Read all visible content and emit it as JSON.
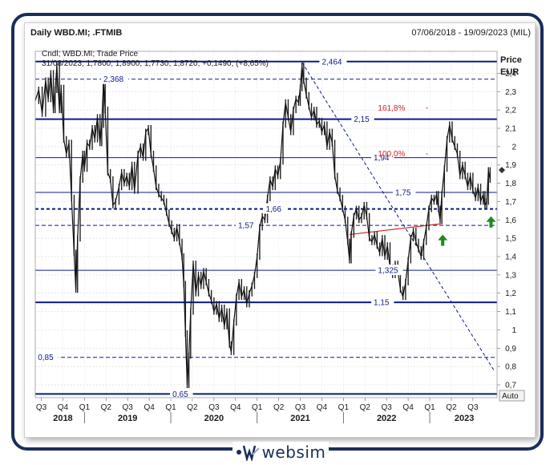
{
  "header": {
    "title": "Daily WBD.MI; .FTMIB",
    "date_range": "07/06/2018 - 19/09/2023 (MIL)"
  },
  "legend": {
    "series_line": "Cndl; WBD.MI; Trade Price",
    "ohlc_line": "31/08/2023; 1,7800; 1,8900; 1,7730; 1,8720; +0,1490; (+8,65%)"
  },
  "yaxis": {
    "title": "Price",
    "unit": "EUR",
    "auto_label": "Auto"
  },
  "brand": {
    "name": "websim"
  },
  "chart_data": {
    "type": "candlestick",
    "ylim": [
      0.63,
      2.52
    ],
    "yticks": [
      {
        "v": 2.4,
        "t": "2,4"
      },
      {
        "v": 2.3,
        "t": "2,3"
      },
      {
        "v": 2.2,
        "t": "2,2"
      },
      {
        "v": 2.1,
        "t": "2,1"
      },
      {
        "v": 2.0,
        "t": "2"
      },
      {
        "v": 1.9,
        "t": "1,9"
      },
      {
        "v": 1.8,
        "t": "1,8"
      },
      {
        "v": 1.7,
        "t": "1,7"
      },
      {
        "v": 1.6,
        "t": "1,6"
      },
      {
        "v": 1.5,
        "t": "1,5"
      },
      {
        "v": 1.4,
        "t": "1,4"
      },
      {
        "v": 1.3,
        "t": "1,3"
      },
      {
        "v": 1.2,
        "t": "1,2"
      },
      {
        "v": 1.1,
        "t": "1,1"
      },
      {
        "v": 1.0,
        "t": "1"
      },
      {
        "v": 0.9,
        "t": "0,9"
      },
      {
        "v": 0.8,
        "t": "0,8"
      },
      {
        "v": 0.7,
        "t": "0,7"
      }
    ],
    "xticks": [
      {
        "t": "Q3",
        "x": 2018.5
      },
      {
        "t": "Q4",
        "x": 2018.75
      },
      {
        "t": "Q1",
        "x": 2019.0
      },
      {
        "t": "Q2",
        "x": 2019.25
      },
      {
        "t": "Q3",
        "x": 2019.5
      },
      {
        "t": "Q4",
        "x": 2019.75
      },
      {
        "t": "Q1",
        "x": 2020.0
      },
      {
        "t": "Q2",
        "x": 2020.25
      },
      {
        "t": "Q3",
        "x": 2020.5
      },
      {
        "t": "Q4",
        "x": 2020.75
      },
      {
        "t": "Q1",
        "x": 2021.0
      },
      {
        "t": "Q2",
        "x": 2021.25
      },
      {
        "t": "Q3",
        "x": 2021.5
      },
      {
        "t": "Q4",
        "x": 2021.75
      },
      {
        "t": "Q1",
        "x": 2022.0
      },
      {
        "t": "Q2",
        "x": 2022.25
      },
      {
        "t": "Q3",
        "x": 2022.5
      },
      {
        "t": "Q4",
        "x": 2022.75
      },
      {
        "t": "Q1",
        "x": 2023.0
      },
      {
        "t": "Q2",
        "x": 2023.25
      },
      {
        "t": "Q3",
        "x": 2023.5
      }
    ],
    "year_labels": [
      {
        "t": "2018",
        "x": 2018.75
      },
      {
        "t": "2019",
        "x": 2019.5
      },
      {
        "t": "2020",
        "x": 2020.5
      },
      {
        "t": "2021",
        "x": 2021.5
      },
      {
        "t": "2022",
        "x": 2022.5
      },
      {
        "t": "2023",
        "x": 2023.4
      }
    ],
    "xlim": [
      2018.43,
      2023.78
    ],
    "levels": [
      {
        "v": 2.464,
        "label": "2,464",
        "style": "solid",
        "lx": 2021.75
      },
      {
        "v": 2.368,
        "label": "2,368",
        "style": "dashed",
        "lx": 2019.22
      },
      {
        "v": 2.15,
        "label": "2,15",
        "style": "solid",
        "lx": 2022.12
      },
      {
        "v": 1.94,
        "label": "1,94",
        "style": "solid-thin",
        "lx": 2022.35
      },
      {
        "v": 1.75,
        "label": "1,75",
        "style": "solid-thin",
        "lx": 2022.6
      },
      {
        "v": 1.66,
        "label": "1,66",
        "style": "dashed-bold",
        "lx": 2021.1
      },
      {
        "v": 1.57,
        "label": "1,57",
        "style": "dashed",
        "lx": 2020.78
      },
      {
        "v": 1.325,
        "label": "1,325",
        "style": "solid-thin",
        "lx": 2022.4
      },
      {
        "v": 1.15,
        "label": "1,15",
        "style": "solid",
        "lx": 2022.35
      },
      {
        "v": 0.85,
        "label": "0,85",
        "style": "dashed",
        "lx": 2018.46
      },
      {
        "v": 0.65,
        "label": "0,65",
        "style": "solid",
        "lx": 2020.02
      }
    ],
    "fib": [
      {
        "label": "161,8%",
        "v": 2.21,
        "x": 2022.4
      },
      {
        "label": "100,0%",
        "v": 1.96,
        "x": 2022.4
      }
    ],
    "last_close": 1.872,
    "series": [
      [
        2018.43,
        2.25
      ],
      [
        2018.47,
        2.31
      ],
      [
        2018.51,
        2.18
      ],
      [
        2018.55,
        2.36
      ],
      [
        2018.58,
        2.26
      ],
      [
        2018.61,
        2.4
      ],
      [
        2018.64,
        2.2
      ],
      [
        2018.66,
        2.31
      ],
      [
        2018.68,
        2.44
      ],
      [
        2018.71,
        2.2
      ],
      [
        2018.73,
        2.32
      ],
      [
        2018.76,
        2.04
      ],
      [
        2018.79,
        1.96
      ],
      [
        2018.82,
        2.02
      ],
      [
        2018.85,
        1.72
      ],
      [
        2018.88,
        1.42
      ],
      [
        2018.9,
        1.22
      ],
      [
        2018.92,
        1.5
      ],
      [
        2018.95,
        1.82
      ],
      [
        2018.98,
        1.96
      ],
      [
        2019.0,
        1.88
      ],
      [
        2019.03,
        2.02
      ],
      [
        2019.06,
        2.0
      ],
      [
        2019.09,
        2.1
      ],
      [
        2019.12,
        2.04
      ],
      [
        2019.15,
        2.16
      ],
      [
        2019.18,
        2.02
      ],
      [
        2019.2,
        2.12
      ],
      [
        2019.22,
        2.36
      ],
      [
        2019.24,
        2.2
      ],
      [
        2019.27,
        1.86
      ],
      [
        2019.3,
        1.82
      ],
      [
        2019.33,
        1.68
      ],
      [
        2019.36,
        1.7
      ],
      [
        2019.4,
        1.78
      ],
      [
        2019.43,
        1.86
      ],
      [
        2019.46,
        1.8
      ],
      [
        2019.49,
        1.84
      ],
      [
        2019.52,
        1.78
      ],
      [
        2019.55,
        1.9
      ],
      [
        2019.58,
        1.76
      ],
      [
        2019.62,
        1.96
      ],
      [
        2019.65,
        2.0
      ],
      [
        2019.68,
        1.94
      ],
      [
        2019.71,
        2.08
      ],
      [
        2019.74,
        2.1
      ],
      [
        2019.77,
        1.96
      ],
      [
        2019.8,
        1.88
      ],
      [
        2019.83,
        1.78
      ],
      [
        2019.86,
        1.74
      ],
      [
        2019.89,
        1.72
      ],
      [
        2019.92,
        1.7
      ],
      [
        2019.95,
        1.64
      ],
      [
        2019.98,
        1.58
      ],
      [
        2020.01,
        1.54
      ],
      [
        2020.04,
        1.5
      ],
      [
        2020.07,
        1.56
      ],
      [
        2020.1,
        1.48
      ],
      [
        2020.13,
        1.4
      ],
      [
        2020.15,
        1.25
      ],
      [
        2020.17,
        0.98
      ],
      [
        2020.19,
        0.7
      ],
      [
        2020.21,
        0.86
      ],
      [
        2020.23,
        1.1
      ],
      [
        2020.26,
        1.36
      ],
      [
        2020.29,
        1.2
      ],
      [
        2020.32,
        1.3
      ],
      [
        2020.35,
        1.24
      ],
      [
        2020.38,
        1.32
      ],
      [
        2020.41,
        1.26
      ],
      [
        2020.44,
        1.2
      ],
      [
        2020.47,
        1.16
      ],
      [
        2020.5,
        1.1
      ],
      [
        2020.53,
        1.14
      ],
      [
        2020.56,
        1.06
      ],
      [
        2020.59,
        1.12
      ],
      [
        2020.62,
        1.02
      ],
      [
        2020.65,
        1.1
      ],
      [
        2020.68,
        0.92
      ],
      [
        2020.7,
        0.88
      ],
      [
        2020.73,
        1.04
      ],
      [
        2020.76,
        1.18
      ],
      [
        2020.79,
        1.26
      ],
      [
        2020.82,
        1.18
      ],
      [
        2020.85,
        1.22
      ],
      [
        2020.88,
        1.14
      ],
      [
        2020.91,
        1.2
      ],
      [
        2020.94,
        1.24
      ],
      [
        2020.97,
        1.3
      ],
      [
        2021.0,
        1.4
      ],
      [
        2021.03,
        1.56
      ],
      [
        2021.06,
        1.62
      ],
      [
        2021.09,
        1.6
      ],
      [
        2021.12,
        1.72
      ],
      [
        2021.15,
        1.82
      ],
      [
        2021.18,
        1.78
      ],
      [
        2021.21,
        1.88
      ],
      [
        2021.24,
        1.84
      ],
      [
        2021.27,
        1.92
      ],
      [
        2021.3,
        2.12
      ],
      [
        2021.33,
        2.24
      ],
      [
        2021.36,
        2.16
      ],
      [
        2021.39,
        2.08
      ],
      [
        2021.42,
        2.2
      ],
      [
        2021.45,
        2.26
      ],
      [
        2021.48,
        2.24
      ],
      [
        2021.5,
        2.32
      ],
      [
        2021.52,
        2.44
      ],
      [
        2021.54,
        2.36
      ],
      [
        2021.57,
        2.28
      ],
      [
        2021.6,
        2.22
      ],
      [
        2021.63,
        2.16
      ],
      [
        2021.66,
        2.2
      ],
      [
        2021.69,
        2.12
      ],
      [
        2021.72,
        2.14
      ],
      [
        2021.75,
        2.08
      ],
      [
        2021.78,
        2.12
      ],
      [
        2021.81,
        2.0
      ],
      [
        2021.84,
        2.08
      ],
      [
        2021.87,
        2.02
      ],
      [
        2021.9,
        1.84
      ],
      [
        2021.93,
        1.76
      ],
      [
        2021.96,
        1.72
      ],
      [
        2021.99,
        1.66
      ],
      [
        2022.02,
        1.6
      ],
      [
        2022.05,
        1.48
      ],
      [
        2022.07,
        1.38
      ],
      [
        2022.09,
        1.52
      ],
      [
        2022.12,
        1.62
      ],
      [
        2022.15,
        1.66
      ],
      [
        2022.18,
        1.6
      ],
      [
        2022.21,
        1.62
      ],
      [
        2022.24,
        1.68
      ],
      [
        2022.27,
        1.62
      ],
      [
        2022.3,
        1.5
      ],
      [
        2022.33,
        1.48
      ],
      [
        2022.36,
        1.52
      ],
      [
        2022.39,
        1.46
      ],
      [
        2022.42,
        1.42
      ],
      [
        2022.45,
        1.5
      ],
      [
        2022.48,
        1.4
      ],
      [
        2022.51,
        1.46
      ],
      [
        2022.54,
        1.34
      ],
      [
        2022.57,
        1.3
      ],
      [
        2022.6,
        1.36
      ],
      [
        2022.63,
        1.32
      ],
      [
        2022.66,
        1.22
      ],
      [
        2022.69,
        1.18
      ],
      [
        2022.72,
        1.26
      ],
      [
        2022.75,
        1.38
      ],
      [
        2022.78,
        1.5
      ],
      [
        2022.81,
        1.54
      ],
      [
        2022.84,
        1.48
      ],
      [
        2022.87,
        1.44
      ],
      [
        2022.9,
        1.4
      ],
      [
        2022.93,
        1.48
      ],
      [
        2022.96,
        1.56
      ],
      [
        2022.99,
        1.66
      ],
      [
        2023.02,
        1.72
      ],
      [
        2023.05,
        1.7
      ],
      [
        2023.08,
        1.74
      ],
      [
        2023.1,
        1.66
      ],
      [
        2023.12,
        1.6
      ],
      [
        2023.14,
        1.74
      ],
      [
        2023.17,
        1.88
      ],
      [
        2023.2,
        2.04
      ],
      [
        2023.23,
        2.12
      ],
      [
        2023.26,
        2.04
      ],
      [
        2023.29,
        2.0
      ],
      [
        2023.32,
        1.96
      ],
      [
        2023.35,
        1.84
      ],
      [
        2023.38,
        1.9
      ],
      [
        2023.41,
        1.84
      ],
      [
        2023.44,
        1.78
      ],
      [
        2023.47,
        1.84
      ],
      [
        2023.5,
        1.76
      ],
      [
        2023.53,
        1.72
      ],
      [
        2023.56,
        1.78
      ],
      [
        2023.59,
        1.7
      ],
      [
        2023.62,
        1.74
      ],
      [
        2023.64,
        1.68
      ],
      [
        2023.66,
        1.7
      ],
      [
        2023.68,
        1.87
      ],
      [
        2023.7,
        1.82
      ]
    ]
  }
}
